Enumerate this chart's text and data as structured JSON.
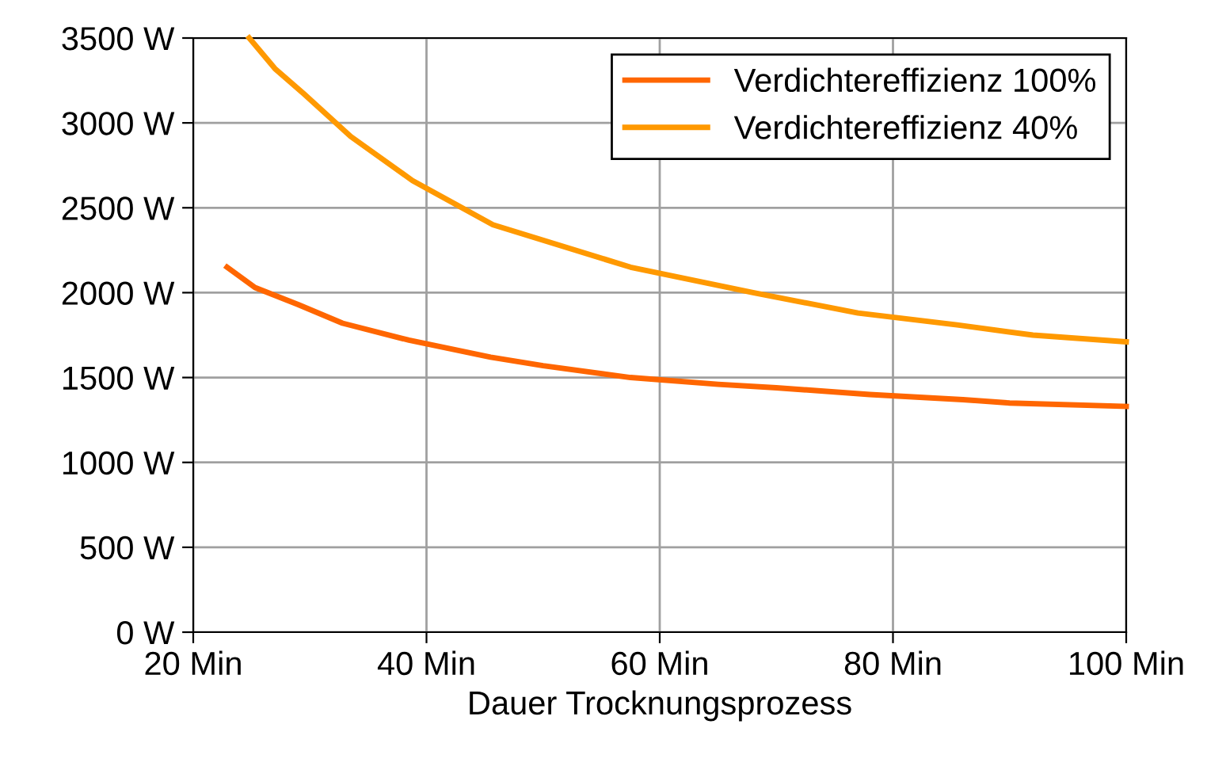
{
  "chart_data": {
    "type": "line",
    "xlabel": "Dauer Trocknungsprozess",
    "xlim": [
      20,
      100
    ],
    "xticks": [
      {
        "value": 20,
        "label": "20 Min"
      },
      {
        "value": 40,
        "label": "40 Min"
      },
      {
        "value": 60,
        "label": "60 Min"
      },
      {
        "value": 80,
        "label": "80 Min"
      },
      {
        "value": 100,
        "label": "100 Min"
      }
    ],
    "ylim": [
      0,
      3500
    ],
    "yticks": [
      {
        "value": 0,
        "label": "0 W"
      },
      {
        "value": 500,
        "label": "500 W"
      },
      {
        "value": 1000,
        "label": "1000 W"
      },
      {
        "value": 1500,
        "label": "1500 W"
      },
      {
        "value": 2000,
        "label": "2000 W"
      },
      {
        "value": 2500,
        "label": "2500 W"
      },
      {
        "value": 3000,
        "label": "3000 W"
      },
      {
        "value": 3500,
        "label": "3500 W"
      }
    ],
    "grid": true,
    "legend": "top right",
    "line_style": "solid",
    "series": [
      {
        "name": "Verdichtereffizienz 100%",
        "color": "#ff6600",
        "x": [
          22.9,
          25.3,
          29,
          32.8,
          38.5,
          45.5,
          50,
          57.5,
          65,
          70,
          78,
          86,
          90,
          100
        ],
        "values": [
          2150,
          2030,
          1930,
          1820,
          1720,
          1620,
          1570,
          1500,
          1460,
          1440,
          1400,
          1370,
          1350,
          1330
        ]
      },
      {
        "name": "Verdichtereffizienz 40%",
        "color": "#ff9900",
        "x": [
          24.8,
          27,
          29.5,
          33.5,
          38.8,
          45.7,
          57.5,
          68,
          77,
          85.5,
          92,
          100
        ],
        "values": [
          3500,
          3320,
          3170,
          2920,
          2660,
          2400,
          2150,
          2000,
          1880,
          1810,
          1750,
          1710
        ]
      }
    ]
  }
}
